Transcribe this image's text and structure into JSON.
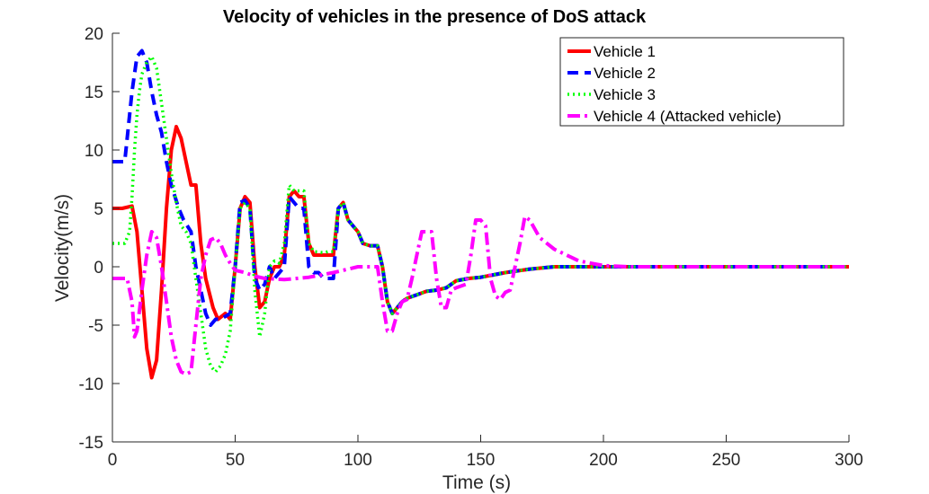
{
  "chart_data": {
    "type": "line",
    "title": "Velocity of vehicles in the presence of DoS attack",
    "xlabel": "Time (s)",
    "ylabel": "Velocity(m/s)",
    "xlim": [
      0,
      300
    ],
    "ylim": [
      -15,
      20
    ],
    "xticks": [
      0,
      50,
      100,
      150,
      200,
      250,
      300
    ],
    "yticks": [
      -15,
      -10,
      -5,
      0,
      5,
      10,
      15,
      20
    ],
    "grid": false,
    "legend_position": "top-right",
    "series": [
      {
        "name": "Vehicle 1",
        "color": "#ff0000",
        "style": "solid",
        "points": [
          [
            0,
            5
          ],
          [
            4,
            5
          ],
          [
            8,
            5.2
          ],
          [
            10,
            3
          ],
          [
            12,
            -2
          ],
          [
            14,
            -7
          ],
          [
            16,
            -9.5
          ],
          [
            18,
            -8
          ],
          [
            20,
            -2
          ],
          [
            22,
            5
          ],
          [
            24,
            10
          ],
          [
            26,
            12
          ],
          [
            28,
            11
          ],
          [
            30,
            9
          ],
          [
            32,
            7
          ],
          [
            34,
            7
          ],
          [
            36,
            2
          ],
          [
            38,
            -1
          ],
          [
            41,
            -3.5
          ],
          [
            43,
            -4.5
          ],
          [
            46,
            -4
          ],
          [
            48,
            -4.5
          ],
          [
            50,
            0
          ],
          [
            52,
            5
          ],
          [
            54,
            6
          ],
          [
            56,
            5.5
          ],
          [
            58,
            0
          ],
          [
            60,
            -3.5
          ],
          [
            62,
            -3
          ],
          [
            64,
            -1
          ],
          [
            66,
            0
          ],
          [
            68,
            0
          ],
          [
            70,
            1
          ],
          [
            72,
            6
          ],
          [
            74,
            6.5
          ],
          [
            76,
            6
          ],
          [
            78,
            6
          ],
          [
            80,
            2
          ],
          [
            82,
            1
          ],
          [
            86,
            1
          ],
          [
            88,
            1
          ],
          [
            90,
            1
          ],
          [
            92,
            5
          ],
          [
            94,
            5.5
          ],
          [
            96,
            4
          ],
          [
            98,
            3.5
          ],
          [
            100,
            3
          ],
          [
            102,
            2
          ],
          [
            105,
            1.8
          ],
          [
            108,
            1.8
          ],
          [
            110,
            0
          ],
          [
            112,
            -3
          ],
          [
            114,
            -4
          ],
          [
            116,
            -3.5
          ],
          [
            118,
            -3
          ],
          [
            120,
            -2.7
          ],
          [
            124,
            -2.4
          ],
          [
            128,
            -2.1
          ],
          [
            132,
            -2
          ],
          [
            136,
            -1.8
          ],
          [
            140,
            -1.2
          ],
          [
            145,
            -1
          ],
          [
            150,
            -0.9
          ],
          [
            155,
            -0.7
          ],
          [
            160,
            -0.5
          ],
          [
            170,
            -0.2
          ],
          [
            180,
            0
          ],
          [
            200,
            0
          ],
          [
            300,
            0
          ]
        ]
      },
      {
        "name": "Vehicle 2",
        "color": "#0000ff",
        "style": "dashed",
        "points": [
          [
            0,
            9
          ],
          [
            5,
            9
          ],
          [
            8,
            15
          ],
          [
            10,
            18
          ],
          [
            12,
            18.5
          ],
          [
            14,
            17.5
          ],
          [
            16,
            15
          ],
          [
            18,
            13
          ],
          [
            20,
            11.5
          ],
          [
            22,
            9
          ],
          [
            24,
            7
          ],
          [
            27,
            5
          ],
          [
            29,
            4
          ],
          [
            32,
            3
          ],
          [
            34,
            0
          ],
          [
            36,
            -2
          ],
          [
            38,
            -4
          ],
          [
            40,
            -5
          ],
          [
            42,
            -4.5
          ],
          [
            44,
            -4.5
          ],
          [
            48,
            -4
          ],
          [
            50,
            0
          ],
          [
            52,
            5.5
          ],
          [
            54,
            5.7
          ],
          [
            56,
            5
          ],
          [
            58,
            -1
          ],
          [
            60,
            -2
          ],
          [
            62,
            -1.5
          ],
          [
            64,
            0
          ],
          [
            66,
            -1
          ],
          [
            70,
            0
          ],
          [
            72,
            6
          ],
          [
            74,
            5.5
          ],
          [
            76,
            5
          ],
          [
            78,
            5
          ],
          [
            80,
            0
          ],
          [
            82,
            -0.5
          ],
          [
            84,
            -0.5
          ],
          [
            86,
            -1
          ],
          [
            88,
            -1
          ],
          [
            90,
            -1
          ],
          [
            92,
            5
          ],
          [
            94,
            5.5
          ],
          [
            96,
            4
          ],
          [
            98,
            3.5
          ],
          [
            100,
            3
          ],
          [
            102,
            2
          ],
          [
            105,
            1.8
          ],
          [
            108,
            1.8
          ],
          [
            110,
            0
          ],
          [
            112,
            -3
          ],
          [
            114,
            -4
          ],
          [
            116,
            -3.5
          ],
          [
            118,
            -3
          ],
          [
            120,
            -2.7
          ],
          [
            124,
            -2.4
          ],
          [
            128,
            -2.1
          ],
          [
            132,
            -2
          ],
          [
            136,
            -1.8
          ],
          [
            140,
            -1.2
          ],
          [
            145,
            -1
          ],
          [
            150,
            -0.9
          ],
          [
            155,
            -0.7
          ],
          [
            160,
            -0.5
          ],
          [
            170,
            -0.2
          ],
          [
            180,
            0
          ],
          [
            200,
            0
          ],
          [
            300,
            0
          ]
        ]
      },
      {
        "name": "Vehicle 3",
        "color": "#00ff00",
        "style": "dotted",
        "points": [
          [
            0,
            2
          ],
          [
            5,
            2
          ],
          [
            7,
            3
          ],
          [
            8,
            6
          ],
          [
            9,
            10
          ],
          [
            10,
            13
          ],
          [
            11,
            15
          ],
          [
            12,
            16.5
          ],
          [
            14,
            17.5
          ],
          [
            16,
            18
          ],
          [
            18,
            17
          ],
          [
            20,
            14
          ],
          [
            22,
            11
          ],
          [
            24,
            8
          ],
          [
            26,
            5.5
          ],
          [
            28,
            3.5
          ],
          [
            30,
            3
          ],
          [
            32,
            2
          ],
          [
            34,
            -1
          ],
          [
            36,
            -4
          ],
          [
            38,
            -7
          ],
          [
            40,
            -8.5
          ],
          [
            42,
            -9
          ],
          [
            44,
            -8.5
          ],
          [
            46,
            -7.5
          ],
          [
            48,
            -5.5
          ],
          [
            50,
            0
          ],
          [
            52,
            5
          ],
          [
            54,
            5.5
          ],
          [
            56,
            5
          ],
          [
            58,
            -2
          ],
          [
            60,
            -6
          ],
          [
            62,
            -4
          ],
          [
            64,
            0
          ],
          [
            66,
            0.5
          ],
          [
            68,
            0.3
          ],
          [
            70,
            2
          ],
          [
            72,
            7
          ],
          [
            74,
            6.5
          ],
          [
            76,
            6.5
          ],
          [
            78,
            6.5
          ],
          [
            80,
            2
          ],
          [
            82,
            1.3
          ],
          [
            86,
            1.2
          ],
          [
            88,
            1.3
          ],
          [
            90,
            1.3
          ],
          [
            92,
            5
          ],
          [
            94,
            5.5
          ],
          [
            96,
            4
          ],
          [
            98,
            3.5
          ],
          [
            100,
            3
          ],
          [
            102,
            2
          ],
          [
            105,
            1.8
          ],
          [
            108,
            1.8
          ],
          [
            110,
            0
          ],
          [
            112,
            -3
          ],
          [
            114,
            -4
          ],
          [
            116,
            -3.5
          ],
          [
            118,
            -3
          ],
          [
            120,
            -2.7
          ],
          [
            124,
            -2.4
          ],
          [
            128,
            -2.1
          ],
          [
            132,
            -2
          ],
          [
            136,
            -1.8
          ],
          [
            140,
            -1.2
          ],
          [
            145,
            -1
          ],
          [
            150,
            -0.9
          ],
          [
            155,
            -0.7
          ],
          [
            160,
            -0.5
          ],
          [
            170,
            -0.2
          ],
          [
            180,
            0
          ],
          [
            200,
            0
          ],
          [
            300,
            0
          ]
        ]
      },
      {
        "name": "Vehicle 4 (Attacked vehicle)",
        "color": "#ff00ff",
        "style": "dashdot",
        "points": [
          [
            0,
            -1
          ],
          [
            4,
            -1
          ],
          [
            6,
            -1
          ],
          [
            8,
            -3
          ],
          [
            9,
            -6
          ],
          [
            10,
            -5.5
          ],
          [
            12,
            -2
          ],
          [
            14,
            1
          ],
          [
            16,
            3
          ],
          [
            18,
            2.5
          ],
          [
            20,
            0
          ],
          [
            22,
            -3
          ],
          [
            24,
            -6
          ],
          [
            26,
            -8
          ],
          [
            28,
            -9
          ],
          [
            30,
            -9.2
          ],
          [
            32,
            -9
          ],
          [
            34,
            -5
          ],
          [
            36,
            -1
          ],
          [
            38,
            1
          ],
          [
            40,
            2.3
          ],
          [
            42,
            2.5
          ],
          [
            44,
            2
          ],
          [
            46,
            1
          ],
          [
            48,
            0.3
          ],
          [
            50,
            -0.3
          ],
          [
            54,
            -0.5
          ],
          [
            58,
            -0.8
          ],
          [
            62,
            -1
          ],
          [
            70,
            -1.1
          ],
          [
            80,
            -0.9
          ],
          [
            90,
            -0.5
          ],
          [
            100,
            0
          ],
          [
            106,
            0
          ],
          [
            108,
            0
          ],
          [
            110,
            -3
          ],
          [
            112,
            -5.5
          ],
          [
            114,
            -5.5
          ],
          [
            116,
            -4
          ],
          [
            118,
            -3
          ],
          [
            120,
            -2.8
          ],
          [
            122,
            -1
          ],
          [
            124,
            1
          ],
          [
            126,
            3
          ],
          [
            128,
            3
          ],
          [
            130,
            3
          ],
          [
            132,
            -1
          ],
          [
            134,
            -3.5
          ],
          [
            136,
            -3.5
          ],
          [
            138,
            -2
          ],
          [
            140,
            -1.8
          ],
          [
            144,
            -1.5
          ],
          [
            146,
            1
          ],
          [
            148,
            4
          ],
          [
            150,
            4
          ],
          [
            152,
            3.5
          ],
          [
            154,
            -1
          ],
          [
            156,
            -2.5
          ],
          [
            158,
            -2.8
          ],
          [
            160,
            -2.2
          ],
          [
            162,
            -2
          ],
          [
            164,
            0
          ],
          [
            166,
            2
          ],
          [
            168,
            4.3
          ],
          [
            170,
            4
          ],
          [
            174,
            2.5
          ],
          [
            180,
            1.5
          ],
          [
            190,
            0.5
          ],
          [
            200,
            0.1
          ],
          [
            210,
            0
          ],
          [
            300,
            0
          ]
        ]
      }
    ]
  }
}
